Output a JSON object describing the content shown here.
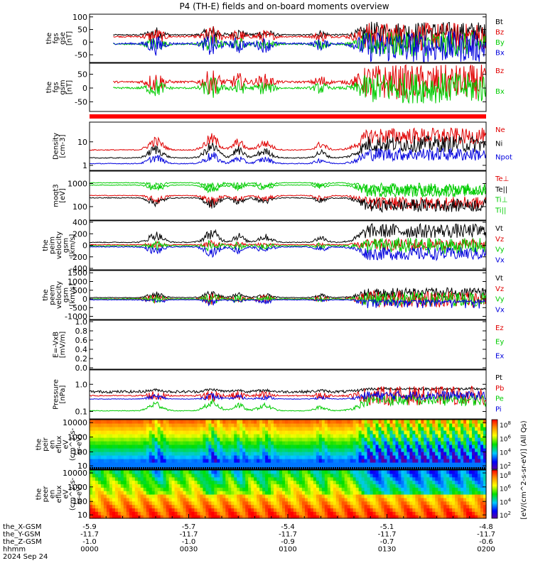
{
  "title": "P4 (TH-E) fields and on-board moments overview",
  "colors": {
    "black": "#000000",
    "red": "#e00000",
    "green": "#00cc00",
    "blue": "#0000dd"
  },
  "chart_data": {
    "type": "line",
    "xaxis": {
      "rows": [
        {
          "label": "the_X-GSM",
          "values": [
            "-5.9",
            "-5.7",
            "-5.4",
            "-5.1",
            "-4.8"
          ]
        },
        {
          "label": "the_Y-GSM",
          "values": [
            "-11.7",
            "-11.7",
            "-11.7",
            "-11.7",
            "-11.7"
          ]
        },
        {
          "label": "the_Z-GSM",
          "values": [
            "-1.0",
            "-1.0",
            "-0.9",
            "-0.7",
            "-0.6"
          ]
        },
        {
          "label": "hhmm",
          "values": [
            "0000",
            "0030",
            "0100",
            "0130",
            "0200"
          ]
        }
      ],
      "date": "2024 Sep 24",
      "range": [
        0,
        120
      ]
    },
    "panels": [
      {
        "id": "fgs-gse",
        "ylabel": [
          "the",
          "fgs",
          "gse",
          "[nT]"
        ],
        "ticks": [
          "100",
          "50",
          "0",
          "-50"
        ],
        "ylim": [
          -75,
          105
        ],
        "series": [
          {
            "name": "Bt",
            "color": "black"
          },
          {
            "name": "Bz",
            "color": "red"
          },
          {
            "name": "By",
            "color": "green"
          },
          {
            "name": "Bx",
            "color": "blue"
          }
        ]
      },
      {
        "id": "fgs-gsm",
        "ylabel": [
          "the",
          "fgs",
          "gsm",
          "[nT]"
        ],
        "ticks": [
          "50",
          "0",
          "-50"
        ],
        "ylim": [
          -80,
          85
        ],
        "series": [
          {
            "name": "Bz",
            "color": "red"
          },
          {
            "name": "Bx",
            "color": "green"
          }
        ]
      },
      {
        "id": "density",
        "ylabel": [
          "Density",
          "[cm-3]"
        ],
        "ticks": [
          "10",
          "1"
        ],
        "scale": "log",
        "ylim": [
          0.7,
          60
        ],
        "series": [
          {
            "name": "Ne",
            "color": "red"
          },
          {
            "name": "Ni",
            "color": "black"
          },
          {
            "name": "Npot",
            "color": "blue"
          }
        ]
      },
      {
        "id": "temperature",
        "ylabel": [
          "moqt3",
          "[eV]"
        ],
        "ticks": [
          "1000",
          "100"
        ],
        "scale": "log",
        "ylim": [
          30,
          3000
        ],
        "series": [
          {
            "name": "Te⊥",
            "color": "red"
          },
          {
            "name": "Te||",
            "color": "black"
          },
          {
            "name": "Ti⊥",
            "color": "green"
          },
          {
            "name": "Ti||",
            "color": "green"
          }
        ]
      },
      {
        "id": "ion-velocity",
        "ylabel": [
          "the",
          "peim",
          "velocity",
          "gsm",
          "[km/s]"
        ],
        "ticks": [
          "400",
          "200",
          "0",
          "-200",
          "-400"
        ],
        "ylim": [
          -400,
          400
        ],
        "series": [
          {
            "name": "Vt",
            "color": "black"
          },
          {
            "name": "Vz",
            "color": "red"
          },
          {
            "name": "Vy",
            "color": "green"
          },
          {
            "name": "Vx",
            "color": "blue"
          }
        ]
      },
      {
        "id": "electron-velocity",
        "ylabel": [
          "the",
          "peem",
          "velocity",
          "gsm",
          "[km/s]"
        ],
        "ticks": [
          "1500",
          "1000",
          "500",
          "0",
          "-500",
          "-1000"
        ],
        "ylim": [
          -1100,
          1550
        ],
        "series": [
          {
            "name": "Vt",
            "color": "black"
          },
          {
            "name": "Vz",
            "color": "red"
          },
          {
            "name": "Vy",
            "color": "green"
          },
          {
            "name": "Vx",
            "color": "blue"
          }
        ]
      },
      {
        "id": "efield",
        "ylabel": [
          "E=-VxB",
          "[mV/m]"
        ],
        "ticks": [
          "1.0",
          "0.8",
          "0.6",
          "0.4",
          "0.2",
          "0.0"
        ],
        "ylim": [
          0,
          1
        ],
        "series": [
          {
            "name": "Ez",
            "color": "red"
          },
          {
            "name": "Ey",
            "color": "green"
          },
          {
            "name": "Ex",
            "color": "blue"
          }
        ]
      },
      {
        "id": "pressure",
        "ylabel": [
          "Pressure",
          "[nPa]"
        ],
        "ticks": [
          "1.0",
          "0.1"
        ],
        "scale": "log",
        "ylim": [
          0.06,
          3
        ],
        "series": [
          {
            "name": "Pt",
            "color": "black"
          },
          {
            "name": "Pb",
            "color": "red"
          },
          {
            "name": "Pe",
            "color": "green"
          },
          {
            "name": "Pi",
            "color": "blue"
          }
        ]
      },
      {
        "id": "ion-spectrogram",
        "type": "heatmap",
        "ylabel": [
          "the",
          "peir",
          "en",
          "eflux",
          "eV",
          "(cm^2-s-",
          "sr-eV)"
        ],
        "ticks": [
          "10000",
          "1000",
          "100",
          "10"
        ]
      },
      {
        "id": "electron-spectrogram",
        "type": "heatmap",
        "ylabel": [
          "the",
          "peer",
          "en",
          "eflux",
          "eV",
          "(cm^2-s-",
          "sr-eV)"
        ],
        "ticks": [
          "10000",
          "1000",
          "100",
          "10"
        ]
      }
    ],
    "colorbar": {
      "ticks": [
        "10^8",
        "10^6",
        "10^4",
        "10^2"
      ],
      "label": "[eV/(cm^2-s-sr-eV)] (All Qs)"
    }
  }
}
